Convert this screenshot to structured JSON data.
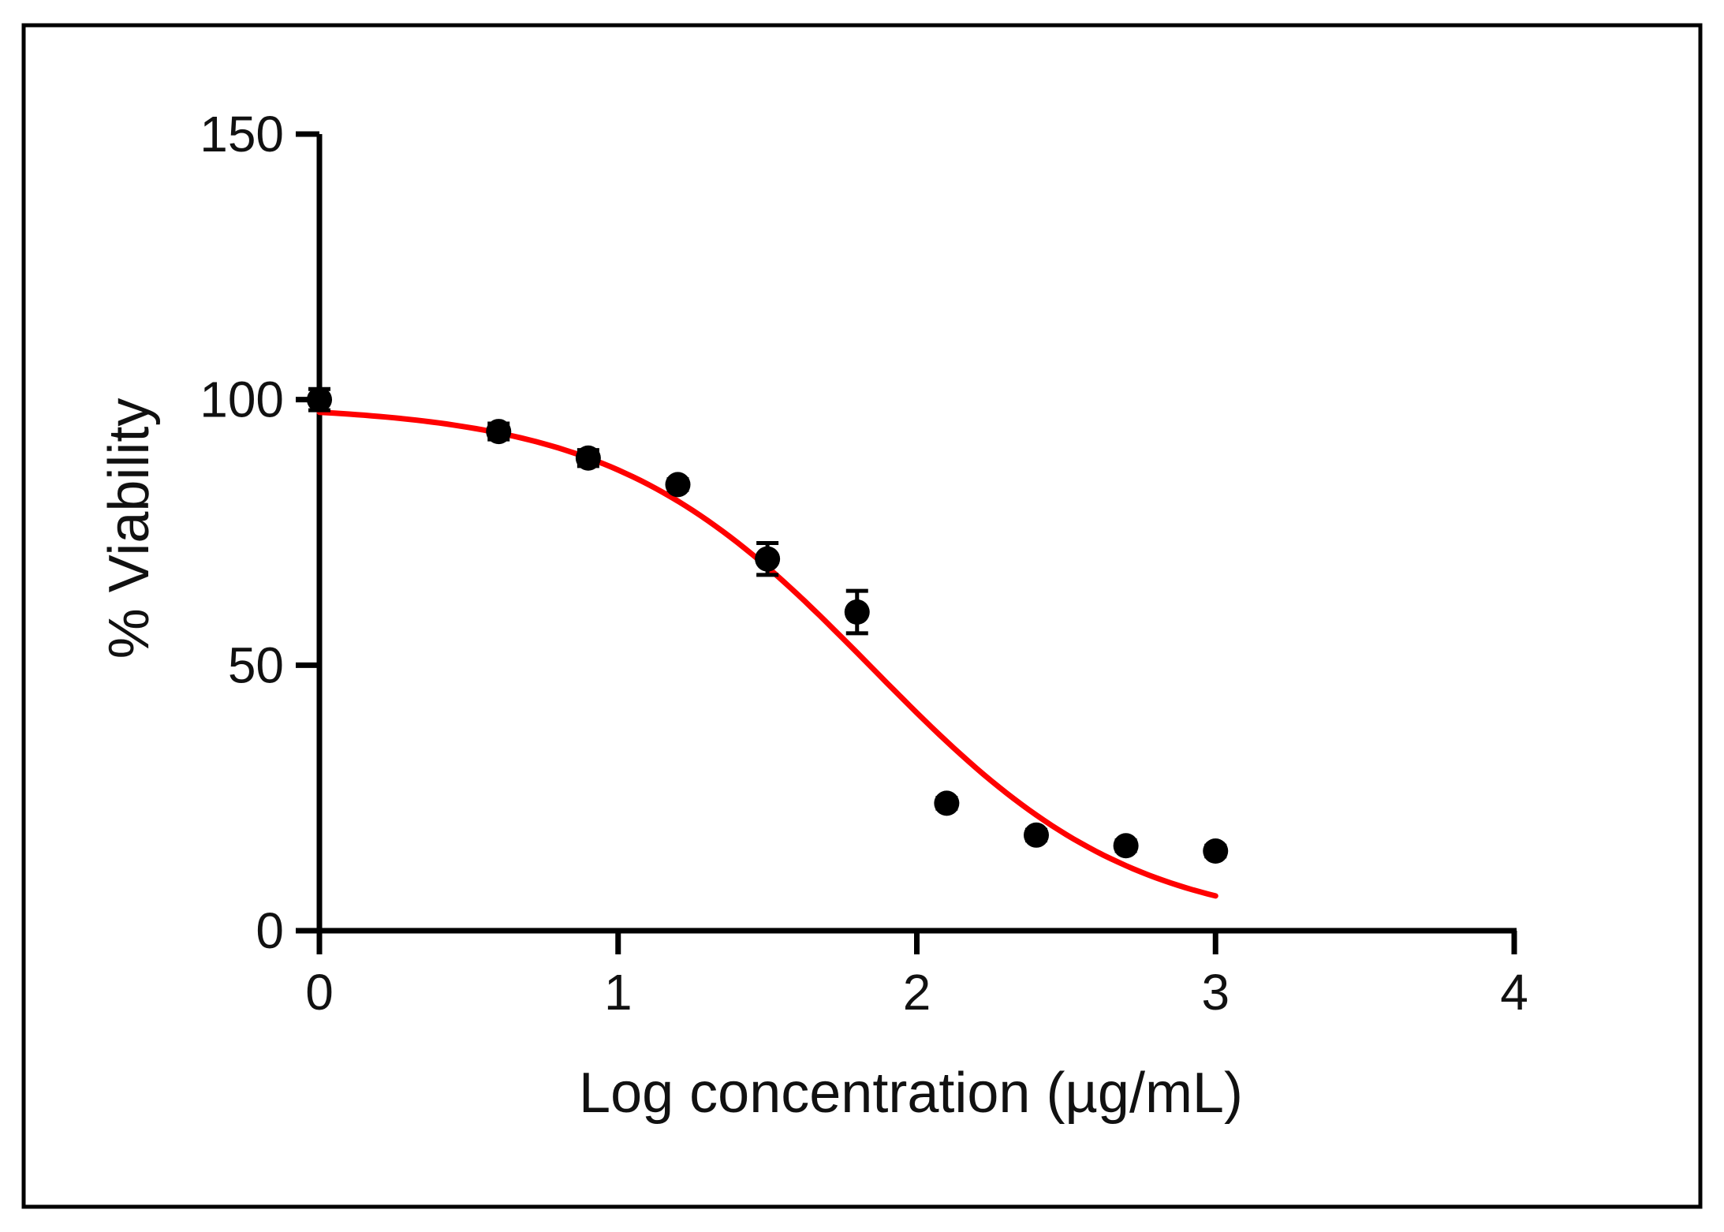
{
  "chart_data": {
    "type": "scatter",
    "title": "",
    "xlabel": "Log concentration (µg/mL)",
    "ylabel": "% Viability",
    "xlim": [
      0,
      4
    ],
    "ylim": [
      0,
      150
    ],
    "x_ticks": [
      0,
      1,
      2,
      3,
      4
    ],
    "y_ticks": [
      0,
      50,
      100,
      150
    ],
    "x_tick_labels": [
      "0",
      "1",
      "2",
      "3",
      "4"
    ],
    "y_tick_labels": [
      "0",
      "50",
      "100",
      "150"
    ],
    "grid": false,
    "legend": "none",
    "series": [
      {
        "kind": "points",
        "color": "#000000",
        "points": [
          {
            "x": 0.0,
            "y": 100,
            "err": 2
          },
          {
            "x": 0.6,
            "y": 94,
            "err": 1.5
          },
          {
            "x": 0.9,
            "y": 89,
            "err": 1.5
          },
          {
            "x": 1.2,
            "y": 84,
            "err": 1
          },
          {
            "x": 1.5,
            "y": 70,
            "err": 3
          },
          {
            "x": 1.8,
            "y": 60,
            "err": 4
          },
          {
            "x": 2.1,
            "y": 24,
            "err": 1
          },
          {
            "x": 2.4,
            "y": 18,
            "err": 1
          },
          {
            "x": 2.7,
            "y": 16,
            "err": 1
          },
          {
            "x": 3.0,
            "y": 15,
            "err": 1
          }
        ]
      },
      {
        "kind": "fit",
        "model": "four-parameter logistic",
        "color": "#ff0000",
        "x_range": [
          0,
          3
        ],
        "top": 99,
        "bottom": 0,
        "log_ic50": 1.85,
        "hill_slope": -1.0
      }
    ]
  }
}
